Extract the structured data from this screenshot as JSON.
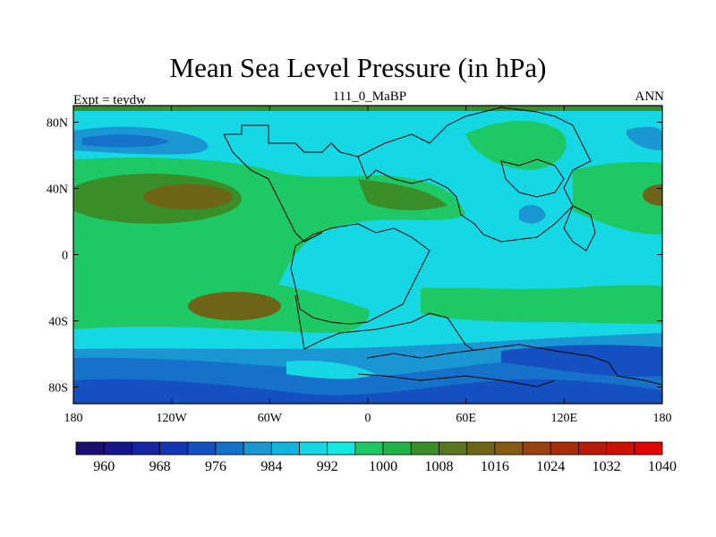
{
  "title": "Mean Sea Level Pressure (in hPa)",
  "left_label": "Expt = teydw",
  "center_label": "111_0_MaBP",
  "right_label": "ANN",
  "map": {
    "lon_ticks": [
      "180",
      "120W",
      "60W",
      "0",
      "60E",
      "120E",
      "180"
    ],
    "lat_ticks": [
      "80N",
      "40N",
      "0",
      "40S",
      "80S"
    ],
    "lat_values": [
      80,
      40,
      0,
      -40,
      -80
    ],
    "lon_values": [
      -180,
      -120,
      -60,
      0,
      60,
      120,
      180
    ]
  },
  "colorbar": {
    "colors": [
      "#1a0f6e",
      "#15168a",
      "#1524a0",
      "#1436b4",
      "#1550c0",
      "#1672c8",
      "#1a96d2",
      "#10b4dc",
      "#16d8e4",
      "#14e8e0",
      "#1ec864",
      "#22b24a",
      "#3a8e2a",
      "#5a7620",
      "#6e6418",
      "#845a14",
      "#98400e",
      "#a82c0a",
      "#b81a08",
      "#cc1006",
      "#e00404"
    ],
    "labels": [
      "960",
      "968",
      "976",
      "984",
      "992",
      "1000",
      "1008",
      "1016",
      "1024",
      "1032",
      "1040"
    ]
  },
  "legend_colors": {
    "ocean_low": "#1672c8",
    "cyan": "#16d8e4",
    "green": "#1ec864",
    "olive": "#6e6418",
    "deep_blue": "#1550c0"
  }
}
